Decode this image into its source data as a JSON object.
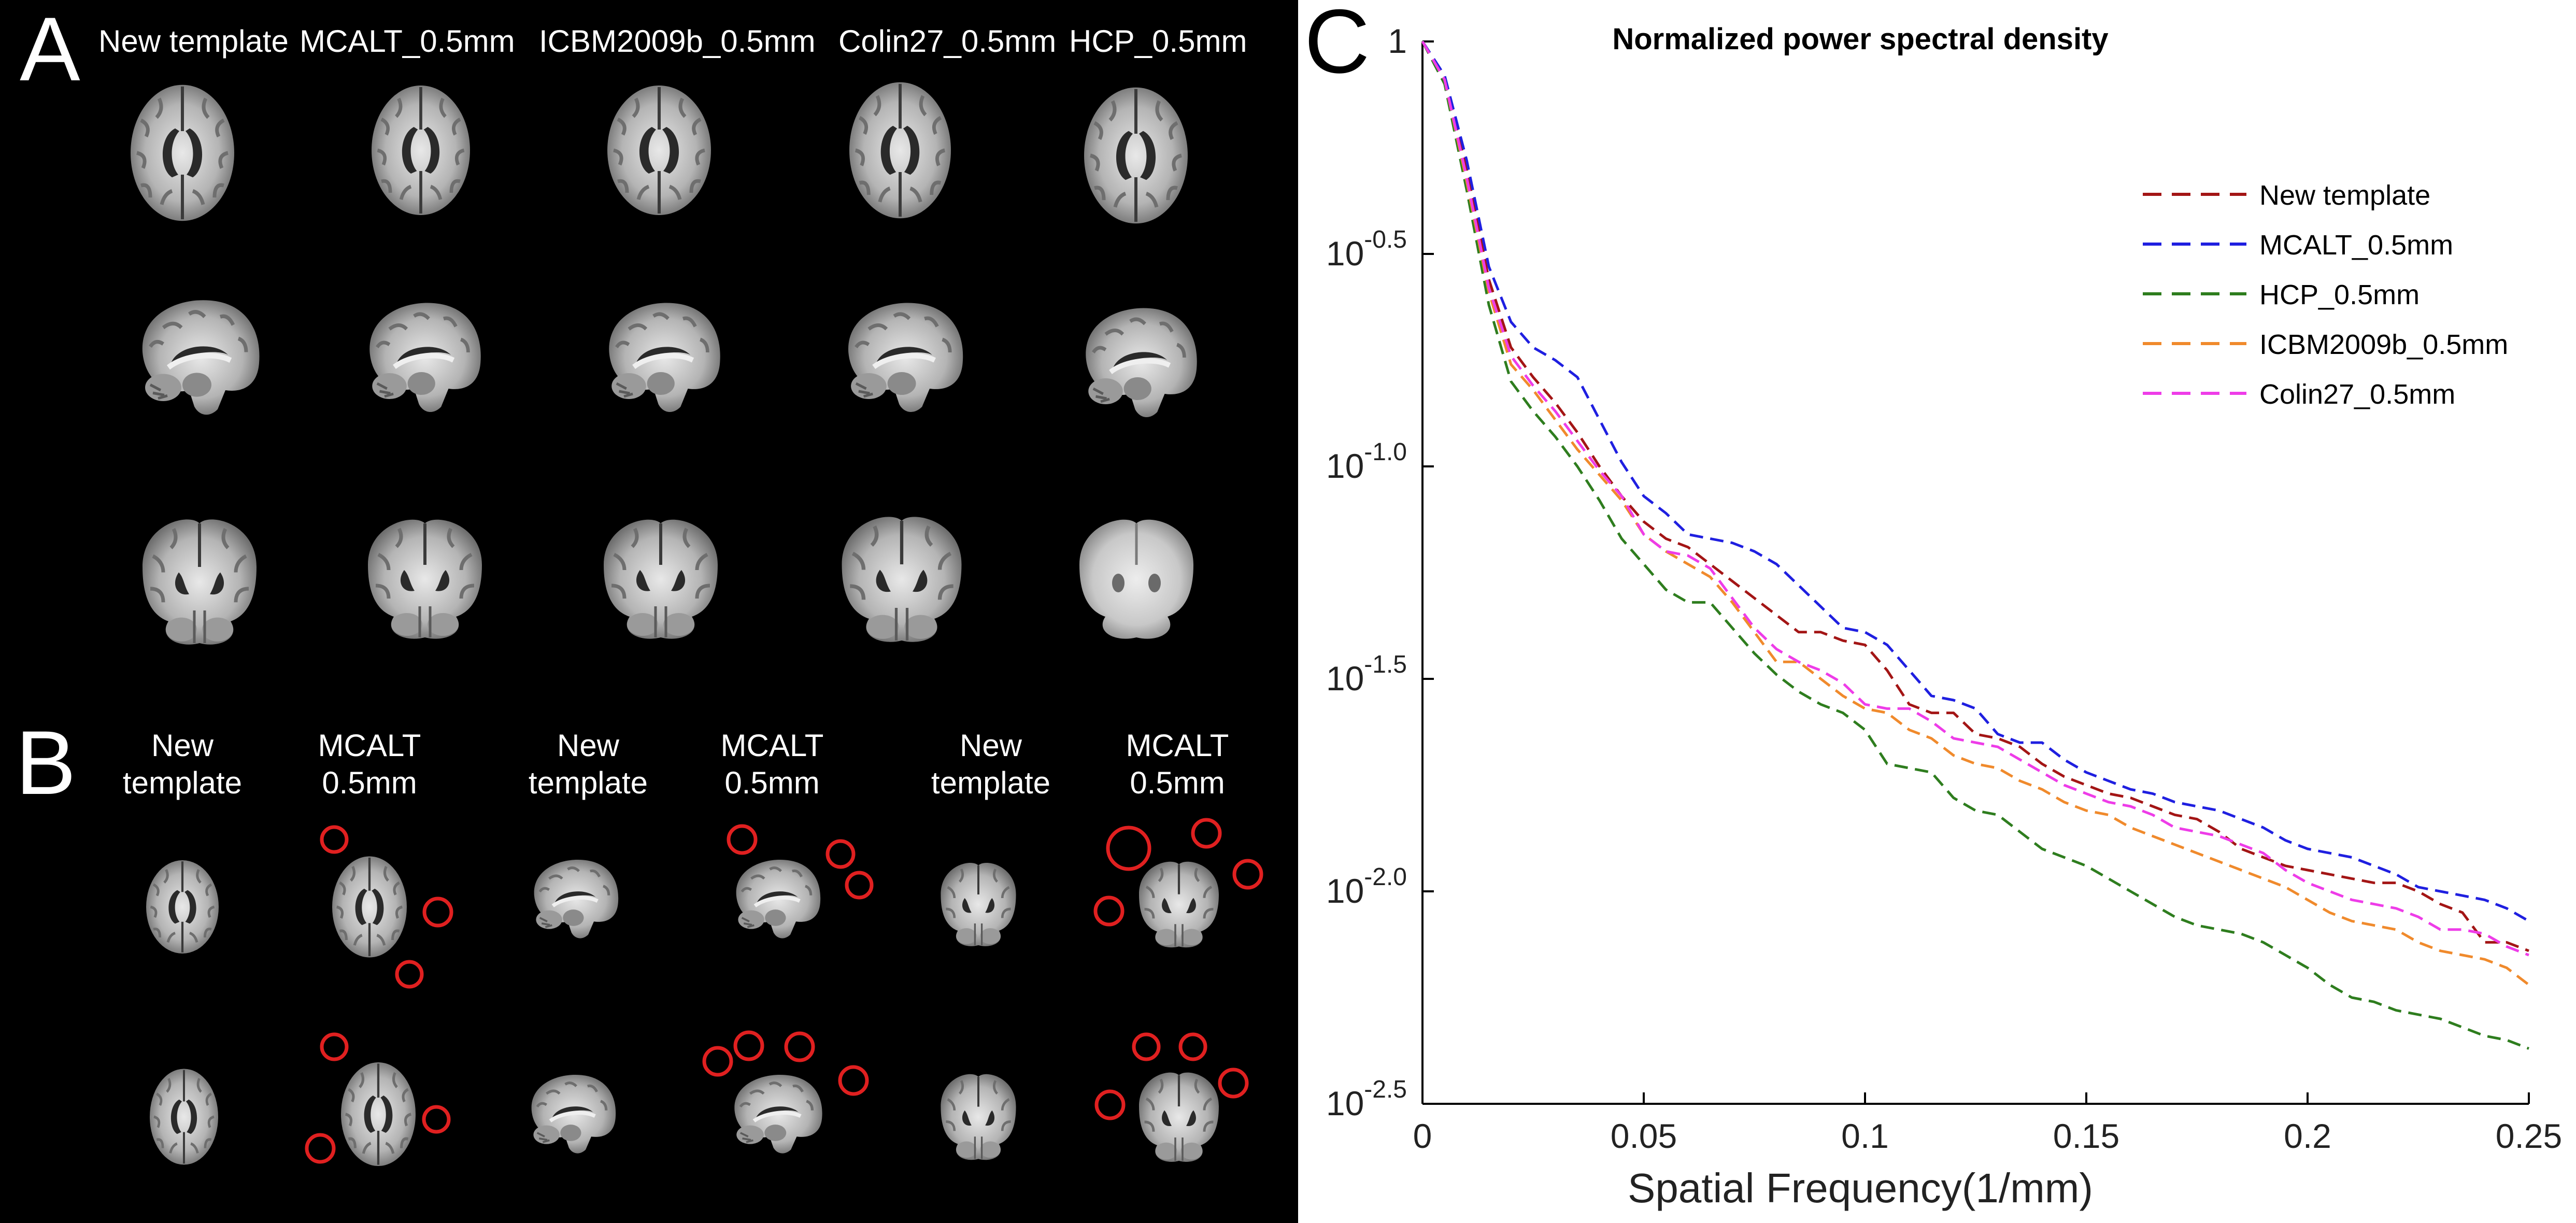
{
  "panel_a": {
    "letter": "A",
    "columns": [
      "New template",
      "MCALT_0.5mm",
      "ICBM2009b_0.5mm",
      "Colin27_0.5mm",
      "HCP_0.5mm"
    ]
  },
  "panel_b": {
    "letter": "B",
    "labels": [
      {
        "line1": "New",
        "line2": "template"
      },
      {
        "line1": "MCALT",
        "line2": "0.5mm"
      },
      {
        "line1": "New",
        "line2": "template"
      },
      {
        "line1": "MCALT",
        "line2": "0.5mm"
      },
      {
        "line1": "New",
        "line2": "template"
      },
      {
        "line1": "MCALT",
        "line2": "0.5mm"
      }
    ]
  },
  "panel_c": {
    "letter": "C"
  },
  "colors": {
    "new_template": "#a31515",
    "mcalt": "#1f1fe0",
    "hcp": "#2e7d1e",
    "icbm": "#f08a2c",
    "colin": "#ee3ce8",
    "highlight_circle": "#e02020"
  },
  "chart_data": {
    "type": "line",
    "title": "Normalized power spectral density",
    "xlabel": "Spatial Frequency(1/mm)",
    "ylabel": "",
    "yscale": "log10",
    "xlim": [
      0,
      0.25
    ],
    "ylim_log10": [
      -2.5,
      0
    ],
    "x_ticks": [
      0,
      0.05,
      0.1,
      0.15,
      0.2,
      0.25
    ],
    "x_tick_labels": [
      "0",
      "0.05",
      "0.1",
      "0.15",
      "0.2",
      "0.25"
    ],
    "y_ticks_log10": [
      0,
      -0.5,
      -1.0,
      -1.5,
      -2.0,
      -2.5
    ],
    "y_tick_labels": [
      {
        "base": "1",
        "exp": ""
      },
      {
        "base": "10",
        "exp": "-0.5"
      },
      {
        "base": "10",
        "exp": "-1.0"
      },
      {
        "base": "10",
        "exp": "-1.5"
      },
      {
        "base": "10",
        "exp": "-2.0"
      },
      {
        "base": "10",
        "exp": "-2.5"
      }
    ],
    "legend_position": "top-right",
    "x": [
      0,
      0.005,
      0.01,
      0.015,
      0.02,
      0.025,
      0.03,
      0.035,
      0.04,
      0.045,
      0.05,
      0.055,
      0.06,
      0.065,
      0.07,
      0.075,
      0.08,
      0.085,
      0.09,
      0.095,
      0.1,
      0.105,
      0.11,
      0.115,
      0.12,
      0.125,
      0.13,
      0.135,
      0.14,
      0.145,
      0.15,
      0.155,
      0.16,
      0.165,
      0.17,
      0.175,
      0.18,
      0.185,
      0.19,
      0.195,
      0.2,
      0.205,
      0.21,
      0.215,
      0.22,
      0.225,
      0.23,
      0.235,
      0.24,
      0.245,
      0.25
    ],
    "series": [
      {
        "name": "New template",
        "color_key": "new_template",
        "values": [
          0,
          -0.09,
          -0.3,
          -0.56,
          -0.72,
          -0.79,
          -0.85,
          -0.92,
          -1.0,
          -1.07,
          -1.13,
          -1.17,
          -1.19,
          -1.23,
          -1.27,
          -1.31,
          -1.35,
          -1.39,
          -1.39,
          -1.41,
          -1.42,
          -1.48,
          -1.56,
          -1.58,
          -1.58,
          -1.63,
          -1.64,
          -1.66,
          -1.7,
          -1.73,
          -1.75,
          -1.77,
          -1.78,
          -1.8,
          -1.82,
          -1.83,
          -1.86,
          -1.9,
          -1.92,
          -1.94,
          -1.95,
          -1.96,
          -1.97,
          -1.98,
          -1.98,
          -2.0,
          -2.03,
          -2.05,
          -2.12,
          -2.12,
          -2.14
        ]
      },
      {
        "name": "MCALT_0.5mm",
        "color_key": "mcalt",
        "values": [
          0,
          -0.08,
          -0.28,
          -0.53,
          -0.66,
          -0.72,
          -0.75,
          -0.79,
          -0.89,
          -0.99,
          -1.07,
          -1.11,
          -1.16,
          -1.17,
          -1.18,
          -1.2,
          -1.23,
          -1.28,
          -1.33,
          -1.38,
          -1.39,
          -1.42,
          -1.48,
          -1.54,
          -1.55,
          -1.57,
          -1.63,
          -1.65,
          -1.65,
          -1.69,
          -1.72,
          -1.74,
          -1.76,
          -1.77,
          -1.79,
          -1.8,
          -1.81,
          -1.83,
          -1.85,
          -1.88,
          -1.9,
          -1.91,
          -1.92,
          -1.94,
          -1.96,
          -1.99,
          -2.0,
          -2.01,
          -2.02,
          -2.04,
          -2.07
        ]
      },
      {
        "name": "HCP_0.5mm",
        "color_key": "hcp",
        "values": [
          0,
          -0.1,
          -0.35,
          -0.62,
          -0.8,
          -0.87,
          -0.93,
          -1.0,
          -1.08,
          -1.17,
          -1.23,
          -1.29,
          -1.32,
          -1.32,
          -1.38,
          -1.44,
          -1.49,
          -1.53,
          -1.56,
          -1.58,
          -1.62,
          -1.7,
          -1.71,
          -1.72,
          -1.78,
          -1.81,
          -1.82,
          -1.86,
          -1.9,
          -1.92,
          -1.94,
          -1.97,
          -2.0,
          -2.03,
          -2.06,
          -2.08,
          -2.09,
          -2.1,
          -2.12,
          -2.15,
          -2.18,
          -2.22,
          -2.25,
          -2.26,
          -2.28,
          -2.29,
          -2.3,
          -2.32,
          -2.34,
          -2.35,
          -2.37
        ]
      },
      {
        "name": "ICBM2009b_0.5mm",
        "color_key": "icbm",
        "values": [
          0,
          -0.09,
          -0.33,
          -0.59,
          -0.76,
          -0.82,
          -0.89,
          -0.96,
          -1.02,
          -1.08,
          -1.16,
          -1.2,
          -1.23,
          -1.26,
          -1.32,
          -1.39,
          -1.46,
          -1.46,
          -1.5,
          -1.54,
          -1.57,
          -1.58,
          -1.62,
          -1.64,
          -1.68,
          -1.7,
          -1.71,
          -1.74,
          -1.76,
          -1.79,
          -1.81,
          -1.82,
          -1.85,
          -1.87,
          -1.89,
          -1.91,
          -1.93,
          -1.95,
          -1.97,
          -1.99,
          -2.02,
          -2.05,
          -2.07,
          -2.08,
          -2.09,
          -2.12,
          -2.14,
          -2.15,
          -2.16,
          -2.18,
          -2.22
        ]
      },
      {
        "name": "Colin27_0.5mm",
        "color_key": "colin",
        "values": [
          0,
          -0.09,
          -0.32,
          -0.58,
          -0.74,
          -0.81,
          -0.87,
          -0.94,
          -1.01,
          -1.07,
          -1.16,
          -1.2,
          -1.21,
          -1.24,
          -1.31,
          -1.38,
          -1.43,
          -1.46,
          -1.48,
          -1.51,
          -1.56,
          -1.57,
          -1.57,
          -1.6,
          -1.64,
          -1.65,
          -1.66,
          -1.69,
          -1.72,
          -1.75,
          -1.77,
          -1.79,
          -1.8,
          -1.82,
          -1.85,
          -1.86,
          -1.87,
          -1.89,
          -1.91,
          -1.95,
          -1.98,
          -2.0,
          -2.02,
          -2.03,
          -2.04,
          -2.06,
          -2.09,
          -2.09,
          -2.1,
          -2.13,
          -2.15
        ]
      }
    ]
  }
}
